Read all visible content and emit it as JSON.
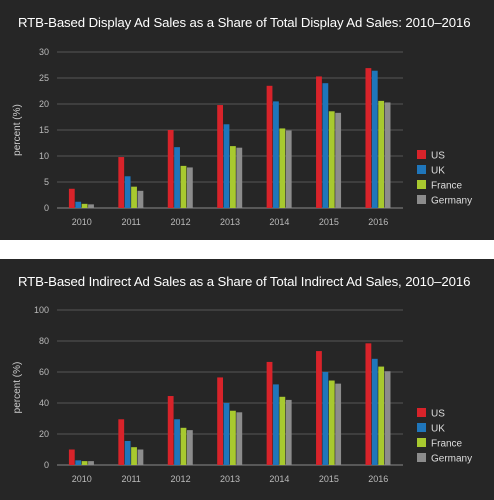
{
  "chart_data": [
    {
      "type": "bar",
      "title": "RTB-Based Display Ad Sales as a Share of Total Display Ad Sales: 2010–2016",
      "xlabel": "",
      "ylabel": "percent (%)",
      "ylim": [
        0,
        30
      ],
      "yticks": [
        0,
        5,
        10,
        15,
        20,
        25,
        30
      ],
      "categories": [
        "2010",
        "2011",
        "2012",
        "2013",
        "2014",
        "2015",
        "2016"
      ],
      "series": [
        {
          "name": "US",
          "color": "#d8232a",
          "values": [
            3.7,
            9.8,
            15.0,
            19.8,
            23.5,
            25.3,
            26.9
          ]
        },
        {
          "name": "UK",
          "color": "#1f76bb",
          "values": [
            1.2,
            6.1,
            11.7,
            16.1,
            20.5,
            24.0,
            26.4
          ]
        },
        {
          "name": "France",
          "color": "#a8c92f",
          "values": [
            0.8,
            4.1,
            8.1,
            11.9,
            15.3,
            18.6,
            20.6
          ]
        },
        {
          "name": "Germany",
          "color": "#8c8c8c",
          "values": [
            0.7,
            3.3,
            7.8,
            11.6,
            14.9,
            18.3,
            20.3
          ]
        }
      ],
      "grid": true,
      "legend": "right"
    },
    {
      "type": "bar",
      "title": "RTB-Based Indirect Ad Sales as a Share of Total Indirect Ad Sales, 2010–2016",
      "xlabel": "",
      "ylabel": "percent (%)",
      "ylim": [
        0,
        100
      ],
      "yticks": [
        0,
        20,
        40,
        60,
        80,
        100
      ],
      "categories": [
        "2010",
        "2011",
        "2012",
        "2013",
        "2014",
        "2015",
        "2016"
      ],
      "series": [
        {
          "name": "US",
          "color": "#d8232a",
          "values": [
            10,
            29.5,
            44.5,
            56.5,
            66.5,
            73.5,
            78.5
          ]
        },
        {
          "name": "UK",
          "color": "#1f76bb",
          "values": [
            3,
            15.5,
            29.5,
            40,
            52,
            60,
            68.5
          ]
        },
        {
          "name": "France",
          "color": "#a8c92f",
          "values": [
            2.5,
            11.5,
            24,
            35,
            44,
            54.5,
            63.5
          ]
        },
        {
          "name": "Germany",
          "color": "#8c8c8c",
          "values": [
            2.5,
            10,
            22.5,
            34,
            42,
            52.5,
            60.5
          ]
        }
      ],
      "grid": true,
      "legend": "right"
    }
  ]
}
